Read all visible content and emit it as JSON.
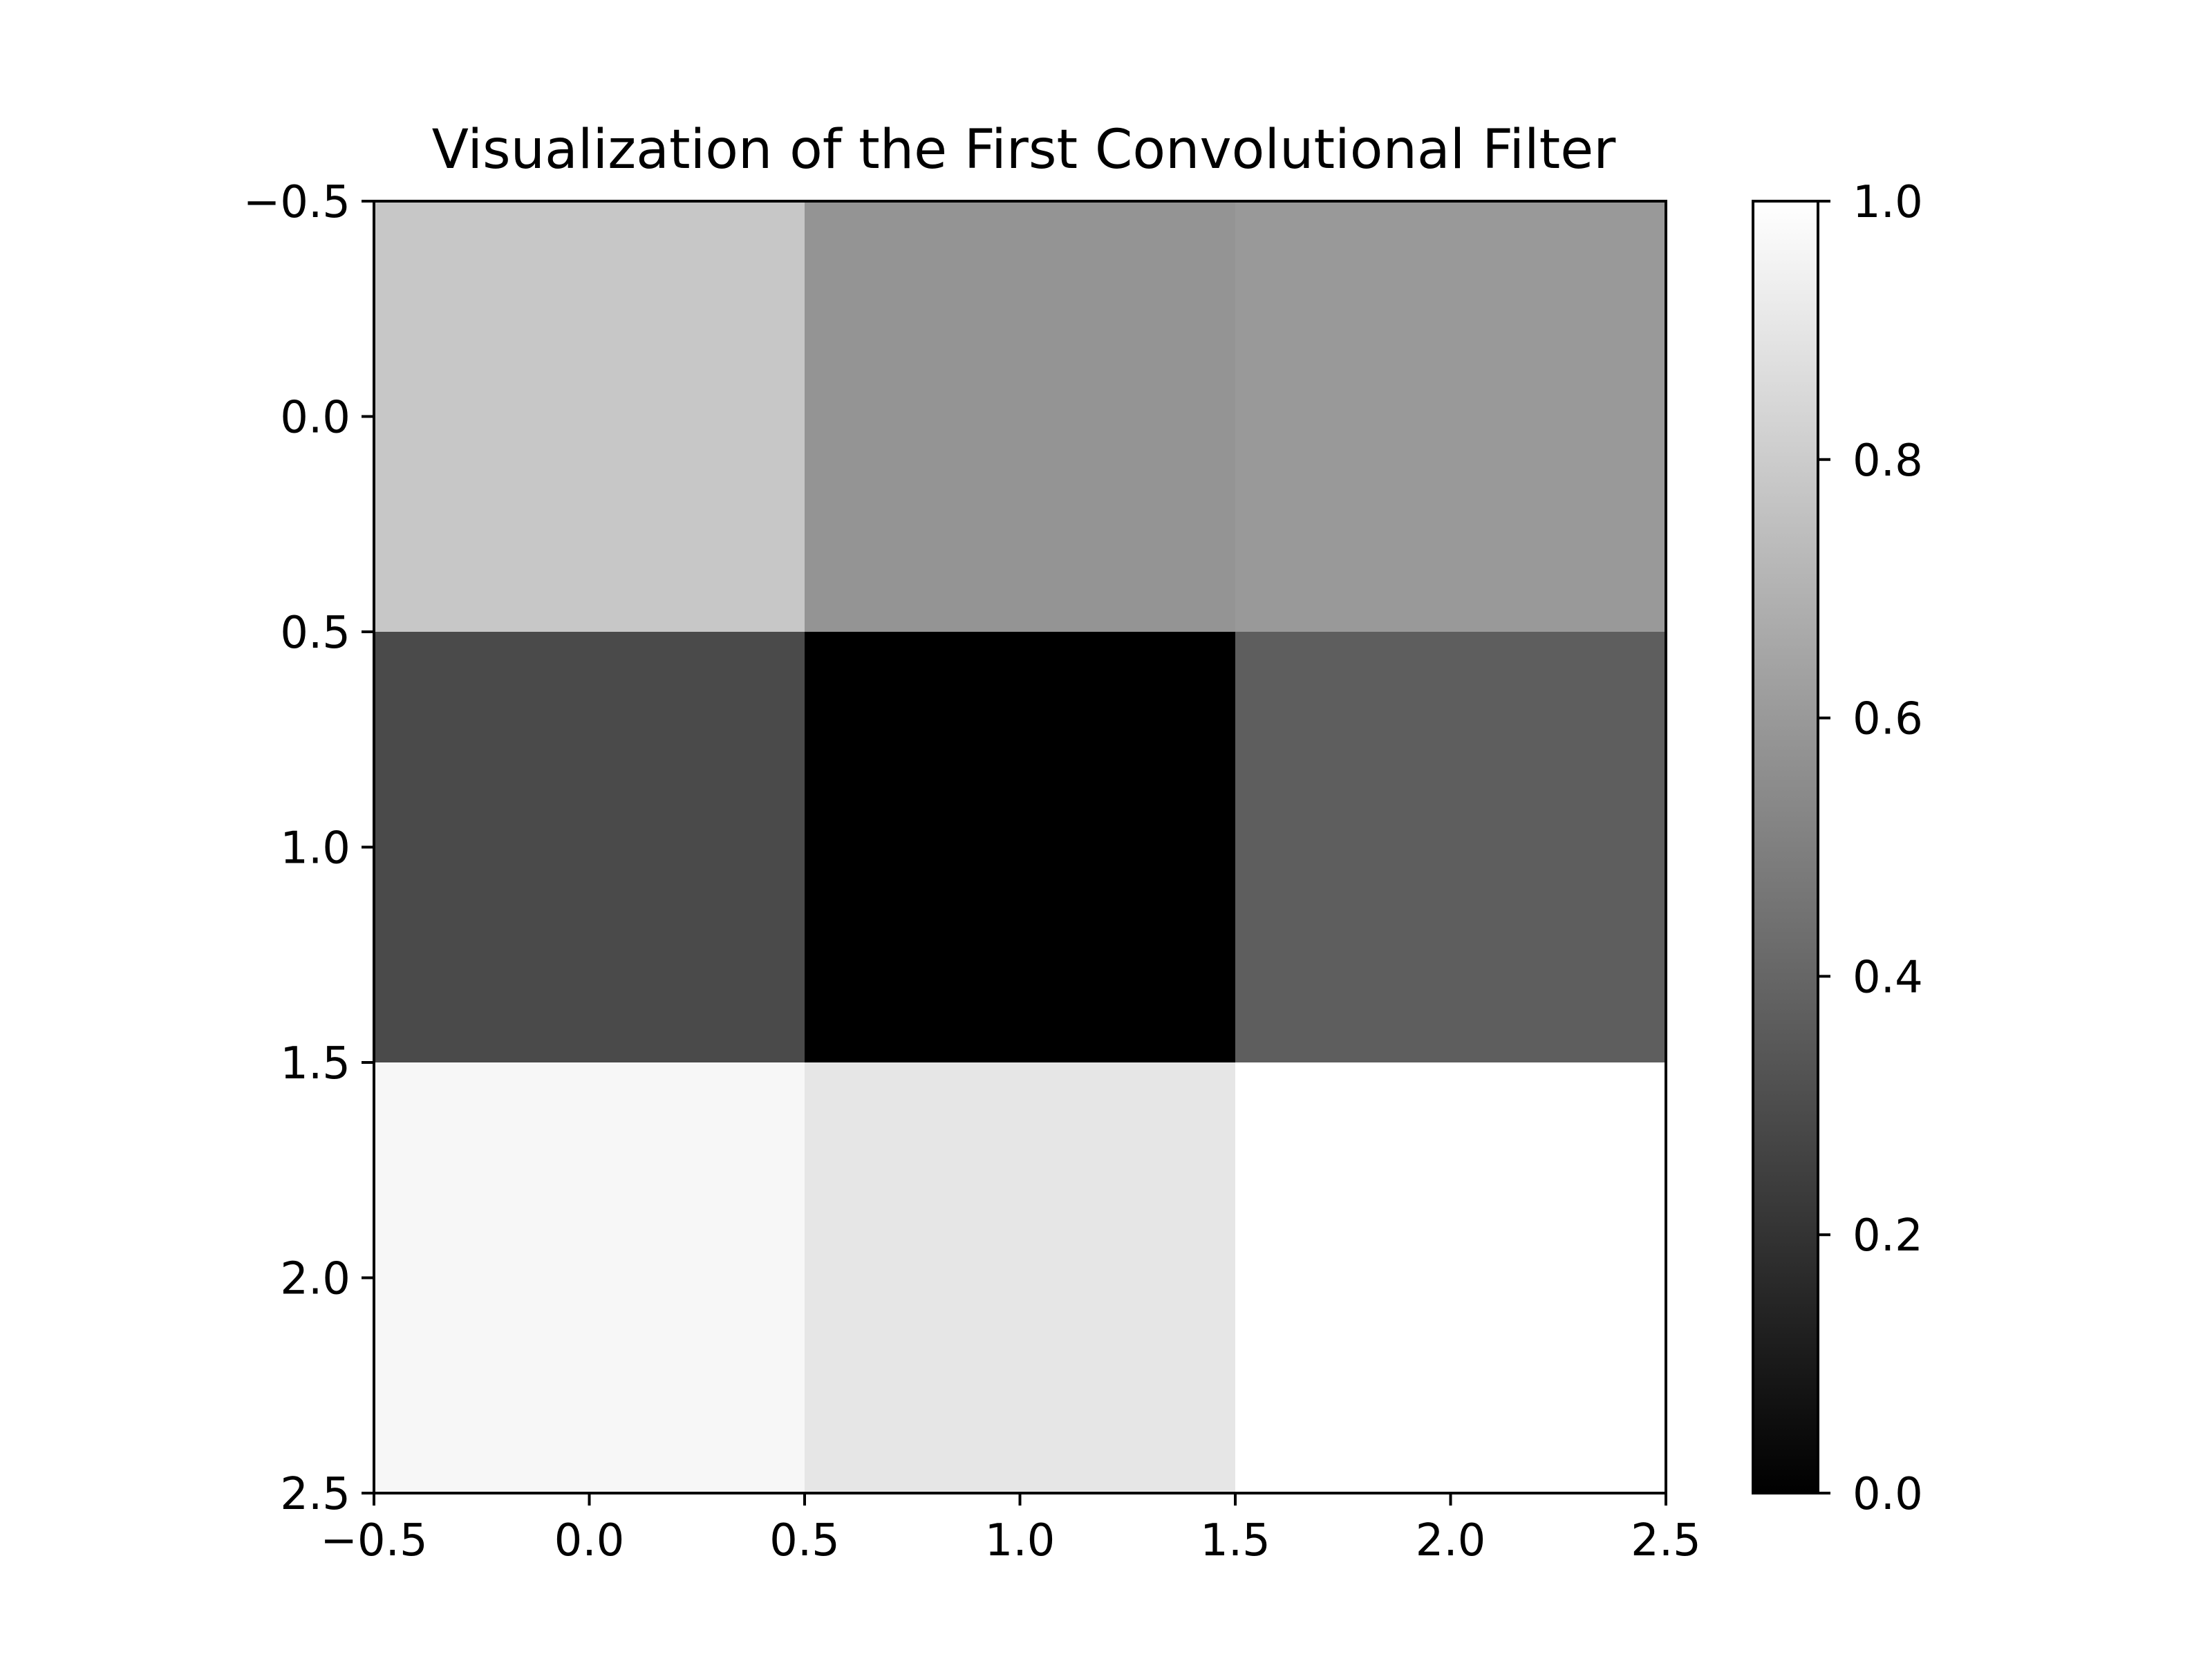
{
  "chart_data": {
    "type": "heatmap",
    "title": "Visualization of the First Convolutional Filter",
    "xlabel": "",
    "ylabel": "",
    "colormap": "gray",
    "colormap_low_color": "#000000",
    "colormap_high_color": "#ffffff",
    "x_range": [
      -0.5,
      2.5
    ],
    "y_range": [
      -0.5,
      2.5
    ],
    "y_inverted": true,
    "x_ticks": [
      -0.5,
      0.0,
      0.5,
      1.0,
      1.5,
      2.0,
      2.5
    ],
    "y_ticks": [
      -0.5,
      0.0,
      0.5,
      1.0,
      1.5,
      2.0,
      2.5
    ],
    "x_tick_labels": [
      "−0.5",
      "0.0",
      "0.5",
      "1.0",
      "1.5",
      "2.0",
      "2.5"
    ],
    "y_tick_labels": [
      "−0.5",
      "0.0",
      "0.5",
      "1.0",
      "1.5",
      "2.0",
      "2.5"
    ],
    "colorbar": {
      "range": [
        0.0,
        1.0
      ],
      "ticks": [
        0.0,
        0.2,
        0.4,
        0.6,
        0.8,
        1.0
      ],
      "tick_labels": [
        "0.0",
        "0.2",
        "0.4",
        "0.6",
        "0.8",
        "1.0"
      ],
      "placement": "right"
    },
    "values": [
      [
        0.78,
        0.58,
        0.6
      ],
      [
        0.29,
        0.0,
        0.37
      ],
      [
        0.97,
        0.9,
        1.0
      ]
    ],
    "grid": false,
    "legend": "none"
  }
}
